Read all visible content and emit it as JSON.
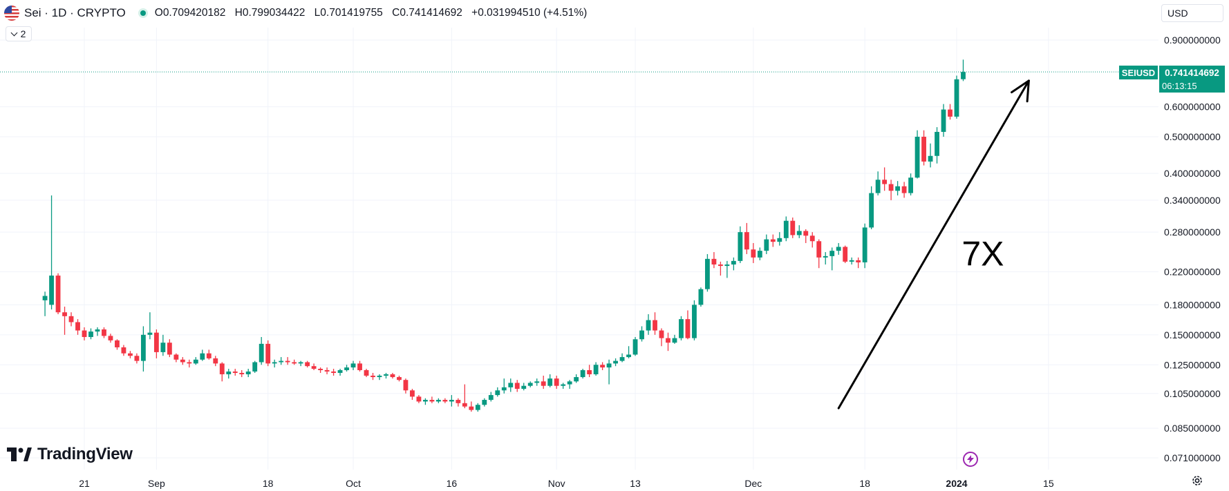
{
  "header": {
    "title": "Sei · 1D · CRYPTO",
    "open_label": "O",
    "open": "0.709420182",
    "high_label": "H",
    "high": "0.799034422",
    "low_label": "L",
    "low": "0.701419755",
    "close_label": "C",
    "close": "0.741414692",
    "change": "+0.031994510 (+4.51%)",
    "collapse_count": "2"
  },
  "currency": "USD",
  "price_badge": {
    "symbol": "SEIUSD",
    "value": "0.741414692",
    "countdown": "06:13:15"
  },
  "logo_text": "TradingView",
  "colors": {
    "up": "#089981",
    "down": "#f23645",
    "accent": "#089981",
    "text": "#131722",
    "grid": "#f0f3fa"
  },
  "chart_data": {
    "type": "candlestick",
    "symbol": "SEIUSD",
    "scale": "log",
    "grid": true,
    "ylim": [
      0.062,
      0.95
    ],
    "y_ticks": [
      "0.900000000",
      "0.600000000",
      "0.500000000",
      "0.400000000",
      "0.340000000",
      "0.280000000",
      "0.220000000",
      "0.180000000",
      "0.150000000",
      "0.125000000",
      "0.105000000",
      "0.085000000",
      "0.071000000"
    ],
    "x_ticks": [
      {
        "label": "21",
        "date": "2023-08-21"
      },
      {
        "label": "Sep",
        "date": "2023-09-01"
      },
      {
        "label": "18",
        "date": "2023-09-18"
      },
      {
        "label": "Oct",
        "date": "2023-10-01"
      },
      {
        "label": "16",
        "date": "2023-10-16"
      },
      {
        "label": "Nov",
        "date": "2023-11-01"
      },
      {
        "label": "13",
        "date": "2023-11-13"
      },
      {
        "label": "Dec",
        "date": "2023-12-01"
      },
      {
        "label": "18",
        "date": "2023-12-18"
      },
      {
        "label": "2024",
        "date": "2024-01-01"
      },
      {
        "label": "15",
        "date": "2024-01-15"
      }
    ],
    "candles": [
      {
        "date": "2023-08-15",
        "o": 0.185,
        "h": 0.195,
        "l": 0.168,
        "c": 0.19
      },
      {
        "date": "2023-08-16",
        "o": 0.18,
        "h": 0.35,
        "l": 0.175,
        "c": 0.215
      },
      {
        "date": "2023-08-17",
        "o": 0.215,
        "h": 0.218,
        "l": 0.17,
        "c": 0.172
      },
      {
        "date": "2023-08-18",
        "o": 0.172,
        "h": 0.178,
        "l": 0.15,
        "c": 0.168
      },
      {
        "date": "2023-08-19",
        "o": 0.168,
        "h": 0.172,
        "l": 0.158,
        "c": 0.162
      },
      {
        "date": "2023-08-20",
        "o": 0.162,
        "h": 0.165,
        "l": 0.15,
        "c": 0.154
      },
      {
        "date": "2023-08-21",
        "o": 0.154,
        "h": 0.157,
        "l": 0.145,
        "c": 0.148
      },
      {
        "date": "2023-08-22",
        "o": 0.148,
        "h": 0.156,
        "l": 0.146,
        "c": 0.153
      },
      {
        "date": "2023-08-23",
        "o": 0.153,
        "h": 0.157,
        "l": 0.149,
        "c": 0.155
      },
      {
        "date": "2023-08-24",
        "o": 0.155,
        "h": 0.157,
        "l": 0.147,
        "c": 0.149
      },
      {
        "date": "2023-08-25",
        "o": 0.149,
        "h": 0.151,
        "l": 0.143,
        "c": 0.145
      },
      {
        "date": "2023-08-26",
        "o": 0.145,
        "h": 0.146,
        "l": 0.137,
        "c": 0.139
      },
      {
        "date": "2023-08-27",
        "o": 0.139,
        "h": 0.141,
        "l": 0.132,
        "c": 0.134
      },
      {
        "date": "2023-08-28",
        "o": 0.134,
        "h": 0.136,
        "l": 0.13,
        "c": 0.132
      },
      {
        "date": "2023-08-29",
        "o": 0.132,
        "h": 0.134,
        "l": 0.126,
        "c": 0.128
      },
      {
        "date": "2023-08-30",
        "o": 0.128,
        "h": 0.158,
        "l": 0.12,
        "c": 0.15
      },
      {
        "date": "2023-08-31",
        "o": 0.15,
        "h": 0.172,
        "l": 0.146,
        "c": 0.152
      },
      {
        "date": "2023-09-01",
        "o": 0.152,
        "h": 0.155,
        "l": 0.13,
        "c": 0.135
      },
      {
        "date": "2023-09-02",
        "o": 0.135,
        "h": 0.15,
        "l": 0.132,
        "c": 0.143
      },
      {
        "date": "2023-09-03",
        "o": 0.143,
        "h": 0.146,
        "l": 0.131,
        "c": 0.133
      },
      {
        "date": "2023-09-04",
        "o": 0.133,
        "h": 0.134,
        "l": 0.127,
        "c": 0.129
      },
      {
        "date": "2023-09-05",
        "o": 0.129,
        "h": 0.131,
        "l": 0.125,
        "c": 0.127
      },
      {
        "date": "2023-09-06",
        "o": 0.127,
        "h": 0.129,
        "l": 0.123,
        "c": 0.126
      },
      {
        "date": "2023-09-07",
        "o": 0.126,
        "h": 0.131,
        "l": 0.125,
        "c": 0.129
      },
      {
        "date": "2023-09-08",
        "o": 0.129,
        "h": 0.137,
        "l": 0.128,
        "c": 0.134
      },
      {
        "date": "2023-09-09",
        "o": 0.134,
        "h": 0.137,
        "l": 0.129,
        "c": 0.13
      },
      {
        "date": "2023-09-10",
        "o": 0.13,
        "h": 0.132,
        "l": 0.124,
        "c": 0.126
      },
      {
        "date": "2023-09-11",
        "o": 0.126,
        "h": 0.127,
        "l": 0.113,
        "c": 0.118
      },
      {
        "date": "2023-09-12",
        "o": 0.118,
        "h": 0.122,
        "l": 0.115,
        "c": 0.12
      },
      {
        "date": "2023-09-13",
        "o": 0.12,
        "h": 0.122,
        "l": 0.117,
        "c": 0.119
      },
      {
        "date": "2023-09-14",
        "o": 0.119,
        "h": 0.121,
        "l": 0.116,
        "c": 0.118
      },
      {
        "date": "2023-09-15",
        "o": 0.118,
        "h": 0.122,
        "l": 0.116,
        "c": 0.12
      },
      {
        "date": "2023-09-16",
        "o": 0.12,
        "h": 0.128,
        "l": 0.119,
        "c": 0.127
      },
      {
        "date": "2023-09-17",
        "o": 0.127,
        "h": 0.148,
        "l": 0.125,
        "c": 0.142
      },
      {
        "date": "2023-09-18",
        "o": 0.142,
        "h": 0.145,
        "l": 0.124,
        "c": 0.126
      },
      {
        "date": "2023-09-19",
        "o": 0.126,
        "h": 0.129,
        "l": 0.123,
        "c": 0.127
      },
      {
        "date": "2023-09-20",
        "o": 0.127,
        "h": 0.131,
        "l": 0.125,
        "c": 0.128
      },
      {
        "date": "2023-09-21",
        "o": 0.128,
        "h": 0.131,
        "l": 0.125,
        "c": 0.127
      },
      {
        "date": "2023-09-22",
        "o": 0.127,
        "h": 0.129,
        "l": 0.125,
        "c": 0.126
      },
      {
        "date": "2023-09-23",
        "o": 0.126,
        "h": 0.128,
        "l": 0.124,
        "c": 0.127
      },
      {
        "date": "2023-09-24",
        "o": 0.127,
        "h": 0.128,
        "l": 0.123,
        "c": 0.124
      },
      {
        "date": "2023-09-25",
        "o": 0.124,
        "h": 0.126,
        "l": 0.121,
        "c": 0.122
      },
      {
        "date": "2023-09-26",
        "o": 0.122,
        "h": 0.123,
        "l": 0.119,
        "c": 0.121
      },
      {
        "date": "2023-09-27",
        "o": 0.121,
        "h": 0.123,
        "l": 0.118,
        "c": 0.12
      },
      {
        "date": "2023-09-28",
        "o": 0.12,
        "h": 0.122,
        "l": 0.117,
        "c": 0.119
      },
      {
        "date": "2023-09-29",
        "o": 0.119,
        "h": 0.122,
        "l": 0.117,
        "c": 0.121
      },
      {
        "date": "2023-09-30",
        "o": 0.121,
        "h": 0.125,
        "l": 0.12,
        "c": 0.123
      },
      {
        "date": "2023-10-01",
        "o": 0.123,
        "h": 0.128,
        "l": 0.121,
        "c": 0.126
      },
      {
        "date": "2023-10-02",
        "o": 0.126,
        "h": 0.128,
        "l": 0.12,
        "c": 0.121
      },
      {
        "date": "2023-10-03",
        "o": 0.121,
        "h": 0.122,
        "l": 0.116,
        "c": 0.117
      },
      {
        "date": "2023-10-04",
        "o": 0.117,
        "h": 0.119,
        "l": 0.114,
        "c": 0.116
      },
      {
        "date": "2023-10-05",
        "o": 0.116,
        "h": 0.118,
        "l": 0.114,
        "c": 0.117
      },
      {
        "date": "2023-10-06",
        "o": 0.117,
        "h": 0.119,
        "l": 0.115,
        "c": 0.118
      },
      {
        "date": "2023-10-07",
        "o": 0.118,
        "h": 0.119,
        "l": 0.115,
        "c": 0.116
      },
      {
        "date": "2023-10-08",
        "o": 0.116,
        "h": 0.117,
        "l": 0.113,
        "c": 0.114
      },
      {
        "date": "2023-10-09",
        "o": 0.114,
        "h": 0.115,
        "l": 0.105,
        "c": 0.107
      },
      {
        "date": "2023-10-10",
        "o": 0.107,
        "h": 0.108,
        "l": 0.101,
        "c": 0.103
      },
      {
        "date": "2023-10-11",
        "o": 0.103,
        "h": 0.104,
        "l": 0.099,
        "c": 0.1
      },
      {
        "date": "2023-10-12",
        "o": 0.1,
        "h": 0.102,
        "l": 0.098,
        "c": 0.101
      },
      {
        "date": "2023-10-13",
        "o": 0.101,
        "h": 0.103,
        "l": 0.099,
        "c": 0.1
      },
      {
        "date": "2023-10-14",
        "o": 0.1,
        "h": 0.102,
        "l": 0.099,
        "c": 0.101
      },
      {
        "date": "2023-10-15",
        "o": 0.101,
        "h": 0.102,
        "l": 0.099,
        "c": 0.1
      },
      {
        "date": "2023-10-16",
        "o": 0.1,
        "h": 0.104,
        "l": 0.097,
        "c": 0.101
      },
      {
        "date": "2023-10-17",
        "o": 0.101,
        "h": 0.102,
        "l": 0.097,
        "c": 0.099
      },
      {
        "date": "2023-10-18",
        "o": 0.099,
        "h": 0.111,
        "l": 0.096,
        "c": 0.097
      },
      {
        "date": "2023-10-19",
        "o": 0.097,
        "h": 0.1,
        "l": 0.094,
        "c": 0.095
      },
      {
        "date": "2023-10-20",
        "o": 0.095,
        "h": 0.099,
        "l": 0.094,
        "c": 0.098
      },
      {
        "date": "2023-10-21",
        "o": 0.098,
        "h": 0.102,
        "l": 0.097,
        "c": 0.101
      },
      {
        "date": "2023-10-22",
        "o": 0.101,
        "h": 0.106,
        "l": 0.1,
        "c": 0.104
      },
      {
        "date": "2023-10-23",
        "o": 0.104,
        "h": 0.109,
        "l": 0.103,
        "c": 0.107
      },
      {
        "date": "2023-10-24",
        "o": 0.107,
        "h": 0.115,
        "l": 0.105,
        "c": 0.109
      },
      {
        "date": "2023-10-25",
        "o": 0.109,
        "h": 0.115,
        "l": 0.106,
        "c": 0.112
      },
      {
        "date": "2023-10-26",
        "o": 0.112,
        "h": 0.114,
        "l": 0.106,
        "c": 0.108
      },
      {
        "date": "2023-10-27",
        "o": 0.108,
        "h": 0.112,
        "l": 0.107,
        "c": 0.11
      },
      {
        "date": "2023-10-28",
        "o": 0.11,
        "h": 0.113,
        "l": 0.109,
        "c": 0.112
      },
      {
        "date": "2023-10-29",
        "o": 0.112,
        "h": 0.115,
        "l": 0.11,
        "c": 0.113
      },
      {
        "date": "2023-10-30",
        "o": 0.113,
        "h": 0.117,
        "l": 0.108,
        "c": 0.11
      },
      {
        "date": "2023-10-31",
        "o": 0.11,
        "h": 0.118,
        "l": 0.109,
        "c": 0.115
      },
      {
        "date": "2023-11-01",
        "o": 0.115,
        "h": 0.117,
        "l": 0.108,
        "c": 0.11
      },
      {
        "date": "2023-11-02",
        "o": 0.11,
        "h": 0.112,
        "l": 0.108,
        "c": 0.111
      },
      {
        "date": "2023-11-03",
        "o": 0.111,
        "h": 0.114,
        "l": 0.108,
        "c": 0.113
      },
      {
        "date": "2023-11-04",
        "o": 0.113,
        "h": 0.118,
        "l": 0.112,
        "c": 0.116
      },
      {
        "date": "2023-11-05",
        "o": 0.116,
        "h": 0.122,
        "l": 0.115,
        "c": 0.121
      },
      {
        "date": "2023-11-06",
        "o": 0.121,
        "h": 0.125,
        "l": 0.116,
        "c": 0.118
      },
      {
        "date": "2023-11-07",
        "o": 0.118,
        "h": 0.127,
        "l": 0.117,
        "c": 0.125
      },
      {
        "date": "2023-11-08",
        "o": 0.125,
        "h": 0.127,
        "l": 0.121,
        "c": 0.123
      },
      {
        "date": "2023-11-09",
        "o": 0.123,
        "h": 0.129,
        "l": 0.111,
        "c": 0.126
      },
      {
        "date": "2023-11-10",
        "o": 0.126,
        "h": 0.13,
        "l": 0.124,
        "c": 0.128
      },
      {
        "date": "2023-11-11",
        "o": 0.128,
        "h": 0.134,
        "l": 0.127,
        "c": 0.131
      },
      {
        "date": "2023-11-12",
        "o": 0.131,
        "h": 0.14,
        "l": 0.13,
        "c": 0.133
      },
      {
        "date": "2023-11-13",
        "o": 0.133,
        "h": 0.148,
        "l": 0.132,
        "c": 0.146
      },
      {
        "date": "2023-11-14",
        "o": 0.146,
        "h": 0.158,
        "l": 0.144,
        "c": 0.154
      },
      {
        "date": "2023-11-15",
        "o": 0.154,
        "h": 0.17,
        "l": 0.15,
        "c": 0.164
      },
      {
        "date": "2023-11-16",
        "o": 0.164,
        "h": 0.172,
        "l": 0.15,
        "c": 0.154
      },
      {
        "date": "2023-11-17",
        "o": 0.154,
        "h": 0.156,
        "l": 0.14,
        "c": 0.147
      },
      {
        "date": "2023-11-18",
        "o": 0.147,
        "h": 0.152,
        "l": 0.136,
        "c": 0.143
      },
      {
        "date": "2023-11-19",
        "o": 0.143,
        "h": 0.15,
        "l": 0.142,
        "c": 0.147
      },
      {
        "date": "2023-11-20",
        "o": 0.147,
        "h": 0.168,
        "l": 0.145,
        "c": 0.165
      },
      {
        "date": "2023-11-21",
        "o": 0.165,
        "h": 0.174,
        "l": 0.146,
        "c": 0.147
      },
      {
        "date": "2023-11-22",
        "o": 0.147,
        "h": 0.185,
        "l": 0.145,
        "c": 0.18
      },
      {
        "date": "2023-11-23",
        "o": 0.18,
        "h": 0.2,
        "l": 0.178,
        "c": 0.198
      },
      {
        "date": "2023-11-24",
        "o": 0.198,
        "h": 0.245,
        "l": 0.195,
        "c": 0.238
      },
      {
        "date": "2023-11-25",
        "o": 0.238,
        "h": 0.248,
        "l": 0.225,
        "c": 0.23
      },
      {
        "date": "2023-11-26",
        "o": 0.23,
        "h": 0.234,
        "l": 0.215,
        "c": 0.228
      },
      {
        "date": "2023-11-27",
        "o": 0.228,
        "h": 0.235,
        "l": 0.212,
        "c": 0.23
      },
      {
        "date": "2023-11-28",
        "o": 0.23,
        "h": 0.24,
        "l": 0.222,
        "c": 0.235
      },
      {
        "date": "2023-11-29",
        "o": 0.235,
        "h": 0.29,
        "l": 0.232,
        "c": 0.28
      },
      {
        "date": "2023-11-30",
        "o": 0.28,
        "h": 0.296,
        "l": 0.245,
        "c": 0.252
      },
      {
        "date": "2023-12-01",
        "o": 0.252,
        "h": 0.262,
        "l": 0.232,
        "c": 0.24
      },
      {
        "date": "2023-12-02",
        "o": 0.24,
        "h": 0.255,
        "l": 0.236,
        "c": 0.25
      },
      {
        "date": "2023-12-03",
        "o": 0.25,
        "h": 0.276,
        "l": 0.245,
        "c": 0.268
      },
      {
        "date": "2023-12-04",
        "o": 0.268,
        "h": 0.276,
        "l": 0.256,
        "c": 0.264
      },
      {
        "date": "2023-12-05",
        "o": 0.264,
        "h": 0.28,
        "l": 0.258,
        "c": 0.27
      },
      {
        "date": "2023-12-06",
        "o": 0.27,
        "h": 0.308,
        "l": 0.265,
        "c": 0.3
      },
      {
        "date": "2023-12-07",
        "o": 0.3,
        "h": 0.306,
        "l": 0.27,
        "c": 0.275
      },
      {
        "date": "2023-12-08",
        "o": 0.275,
        "h": 0.292,
        "l": 0.27,
        "c": 0.282
      },
      {
        "date": "2023-12-09",
        "o": 0.282,
        "h": 0.285,
        "l": 0.262,
        "c": 0.274
      },
      {
        "date": "2023-12-10",
        "o": 0.274,
        "h": 0.28,
        "l": 0.255,
        "c": 0.265
      },
      {
        "date": "2023-12-11",
        "o": 0.265,
        "h": 0.268,
        "l": 0.225,
        "c": 0.24
      },
      {
        "date": "2023-12-12",
        "o": 0.24,
        "h": 0.248,
        "l": 0.23,
        "c": 0.242
      },
      {
        "date": "2023-12-13",
        "o": 0.242,
        "h": 0.255,
        "l": 0.222,
        "c": 0.25
      },
      {
        "date": "2023-12-14",
        "o": 0.25,
        "h": 0.262,
        "l": 0.244,
        "c": 0.256
      },
      {
        "date": "2023-12-15",
        "o": 0.256,
        "h": 0.258,
        "l": 0.232,
        "c": 0.234
      },
      {
        "date": "2023-12-16",
        "o": 0.234,
        "h": 0.24,
        "l": 0.23,
        "c": 0.236
      },
      {
        "date": "2023-12-17",
        "o": 0.236,
        "h": 0.24,
        "l": 0.225,
        "c": 0.233
      },
      {
        "date": "2023-12-18",
        "o": 0.233,
        "h": 0.295,
        "l": 0.225,
        "c": 0.288
      },
      {
        "date": "2023-12-19",
        "o": 0.288,
        "h": 0.37,
        "l": 0.285,
        "c": 0.355
      },
      {
        "date": "2023-12-20",
        "o": 0.355,
        "h": 0.405,
        "l": 0.35,
        "c": 0.385
      },
      {
        "date": "2023-12-21",
        "o": 0.385,
        "h": 0.415,
        "l": 0.36,
        "c": 0.375
      },
      {
        "date": "2023-12-22",
        "o": 0.375,
        "h": 0.385,
        "l": 0.34,
        "c": 0.36
      },
      {
        "date": "2023-12-23",
        "o": 0.36,
        "h": 0.382,
        "l": 0.35,
        "c": 0.37
      },
      {
        "date": "2023-12-24",
        "o": 0.37,
        "h": 0.38,
        "l": 0.345,
        "c": 0.355
      },
      {
        "date": "2023-12-25",
        "o": 0.355,
        "h": 0.4,
        "l": 0.35,
        "c": 0.39
      },
      {
        "date": "2023-12-26",
        "o": 0.39,
        "h": 0.52,
        "l": 0.388,
        "c": 0.5
      },
      {
        "date": "2023-12-27",
        "o": 0.5,
        "h": 0.52,
        "l": 0.42,
        "c": 0.43
      },
      {
        "date": "2023-12-28",
        "o": 0.43,
        "h": 0.48,
        "l": 0.415,
        "c": 0.445
      },
      {
        "date": "2023-12-29",
        "o": 0.445,
        "h": 0.53,
        "l": 0.425,
        "c": 0.515
      },
      {
        "date": "2023-12-30",
        "o": 0.515,
        "h": 0.61,
        "l": 0.5,
        "c": 0.59
      },
      {
        "date": "2023-12-31",
        "o": 0.59,
        "h": 0.61,
        "l": 0.555,
        "c": 0.565
      },
      {
        "date": "2024-01-01",
        "o": 0.565,
        "h": 0.725,
        "l": 0.558,
        "c": 0.709
      },
      {
        "date": "2024-01-02",
        "o": 0.709420182,
        "h": 0.799034422,
        "l": 0.701419755,
        "c": 0.741414692
      }
    ],
    "current_price": 0.741414692,
    "annotations": [
      {
        "type": "arrow",
        "from": {
          "date": "2023-12-14",
          "price": 0.096
        },
        "to": {
          "date": "2024-01-12",
          "price": 0.703
        }
      },
      {
        "type": "text",
        "text": "7X",
        "date": "2024-01-05",
        "price": 0.2286
      }
    ]
  }
}
